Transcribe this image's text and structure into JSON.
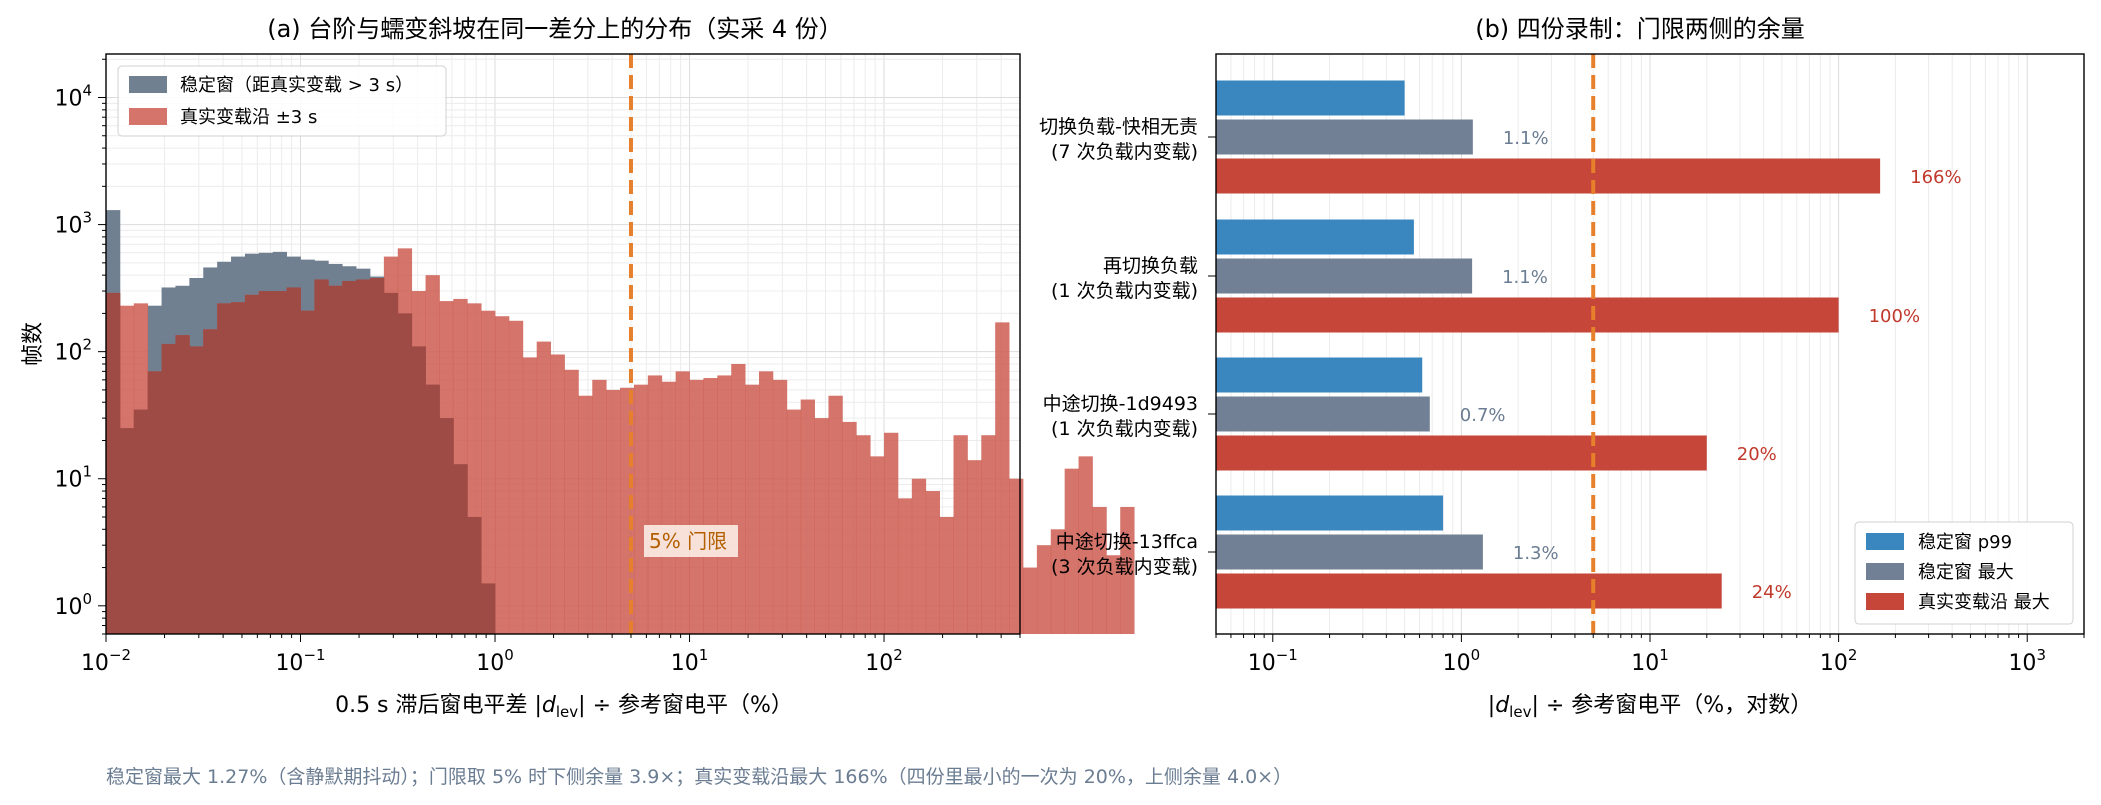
{
  "footer_note": "稳定窗最大 1.27%（含静默期抖动）；门限取 5% 时下侧余量 3.9×；真实变载沿最大 166%（四份里最小的一次为 20%，上侧余量 4.0×）",
  "colors": {
    "steady": "#708090",
    "edge": "#cd5c50",
    "overlap": "#9e4b46",
    "p99": "#3a87c0",
    "steady_max": "#718094",
    "edge_max": "#c6463a",
    "threshold": "#e6802c",
    "threshold_label_text": "#b35f00",
    "annot_gray": "#6b7d92",
    "annot_red": "#c0392b"
  },
  "chart_data": [
    {
      "type": "bar",
      "subtype": "histogram",
      "title": "(a) 台阶与蠕变斜坡在同一差分上的分布（实采 4 份）",
      "xlabel_parts": [
        "0.5 s 滞后窗电平差 |",
        "d",
        "lev",
        "| ÷ 参考窗电平（%）"
      ],
      "ylabel": "帧数",
      "xscale": "log",
      "yscale": "log",
      "xlim": [
        0.01,
        500
      ],
      "ylim": [
        0.6,
        22000
      ],
      "grid": true,
      "legend_position": "top-left",
      "x_ticks": [
        {
          "value": 0.01,
          "base": "10",
          "exp": "−2"
        },
        {
          "value": 0.1,
          "base": "10",
          "exp": "−1"
        },
        {
          "value": 1,
          "base": "10",
          "exp": "0"
        },
        {
          "value": 10,
          "base": "10",
          "exp": "1"
        },
        {
          "value": 100,
          "base": "10",
          "exp": "2"
        }
      ],
      "y_ticks": [
        {
          "value": 1,
          "base": "10",
          "exp": "0"
        },
        {
          "value": 10,
          "base": "10",
          "exp": "1"
        },
        {
          "value": 100,
          "base": "10",
          "exp": "2"
        },
        {
          "value": 1000,
          "base": "10",
          "exp": "3"
        },
        {
          "value": 10000,
          "base": "10",
          "exp": "4"
        }
      ],
      "bins_per_decade": 14,
      "bin_start": 0.01,
      "series": [
        {
          "name": "稳定窗（距真实变载 > 3 s）",
          "values": [
            1300,
            25,
            35,
            230,
            320,
            330,
            380,
            460,
            510,
            560,
            590,
            600,
            610,
            560,
            530,
            520,
            490,
            470,
            450,
            390,
            290,
            200,
            110,
            55,
            30,
            13,
            5,
            1.5
          ]
        },
        {
          "name": "真实变载沿 ±3 s",
          "values": [
            290,
            230,
            240,
            70,
            115,
            135,
            110,
            150,
            240,
            245,
            280,
            300,
            300,
            320,
            210,
            370,
            330,
            360,
            370,
            380,
            560,
            650,
            300,
            400,
            250,
            260,
            240,
            210,
            190,
            175,
            90,
            120,
            95,
            72,
            45,
            60,
            50,
            52,
            55,
            65,
            58,
            70,
            60,
            62,
            65,
            80,
            55,
            70,
            60,
            35,
            42,
            30,
            45,
            28,
            22,
            15,
            23,
            7,
            10,
            8,
            5,
            22,
            14,
            22,
            170,
            10,
            2,
            3,
            4,
            12,
            15,
            6,
            2.5,
            6
          ]
        }
      ],
      "threshold": {
        "value": 5,
        "label": "5% 门限"
      }
    },
    {
      "type": "bar",
      "orientation": "horizontal",
      "title": "(b) 四份录制：门限两侧的余量",
      "xlabel_parts": [
        "|",
        "d",
        "lev",
        "| ÷ 参考窗电平（%，对数）"
      ],
      "xscale": "log",
      "xlim": [
        0.05,
        2000
      ],
      "grid": true,
      "legend_position": "bottom-right",
      "x_ticks": [
        {
          "value": 0.1,
          "base": "10",
          "exp": "−1"
        },
        {
          "value": 1,
          "base": "10",
          "exp": "0"
        },
        {
          "value": 10,
          "base": "10",
          "exp": "1"
        },
        {
          "value": 100,
          "base": "10",
          "exp": "2"
        },
        {
          "value": 1000,
          "base": "10",
          "exp": "3"
        }
      ],
      "categories": [
        {
          "line1": "切换负载-快相无责",
          "line2": "(7 次负载内变载)"
        },
        {
          "line1": "再切换负载",
          "line2": "(1 次负载内变载)"
        },
        {
          "line1": "中途切换-1d9493",
          "line2": "(1 次负载内变载)"
        },
        {
          "line1": "中途切换-13ffca",
          "line2": "(3 次负载内变载)"
        }
      ],
      "series": [
        {
          "name": "稳定窗 p99",
          "values": [
            0.5,
            0.56,
            0.62,
            0.8
          ]
        },
        {
          "name": "稳定窗 最大",
          "values": [
            1.15,
            1.14,
            0.68,
            1.3
          ],
          "labels": [
            "1.1%",
            "1.1%",
            "0.7%",
            "1.3%"
          ]
        },
        {
          "name": "真实变载沿 最大",
          "values": [
            166,
            100,
            20,
            24
          ],
          "labels": [
            "166%",
            "100%",
            "20%",
            "24%"
          ]
        }
      ],
      "threshold": {
        "value": 5
      }
    }
  ]
}
